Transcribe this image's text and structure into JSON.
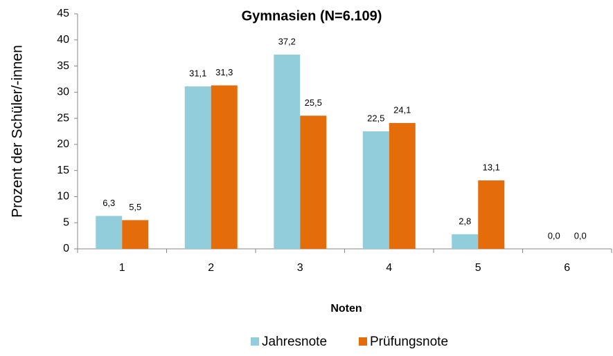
{
  "chart_data": {
    "type": "bar",
    "title": "Gymnasien (N=6.109)",
    "x_label": "Noten",
    "y_label": "Prozent der Schüler/-innen",
    "categories": [
      "1",
      "2",
      "3",
      "4",
      "5",
      "6"
    ],
    "series": [
      {
        "name": "Jahresnote",
        "color": "#92cddc",
        "values": [
          6.3,
          31.1,
          37.2,
          22.5,
          2.8,
          0.0
        ],
        "value_labels": [
          "6,3",
          "31,1",
          "37,2",
          "22,5",
          "2,8",
          "0,0"
        ]
      },
      {
        "name": "Prüfungsnote",
        "color": "#e46c0a",
        "values": [
          5.5,
          31.3,
          25.5,
          24.1,
          13.1,
          0.0
        ],
        "value_labels": [
          "5,5",
          "31,3",
          "25,5",
          "24,1",
          "13,1",
          "0,0"
        ]
      }
    ],
    "ylim": [
      0,
      45
    ],
    "yticks": [
      0,
      5,
      10,
      15,
      20,
      25,
      30,
      35,
      40,
      45
    ],
    "grid": false,
    "legend": "bottom"
  }
}
